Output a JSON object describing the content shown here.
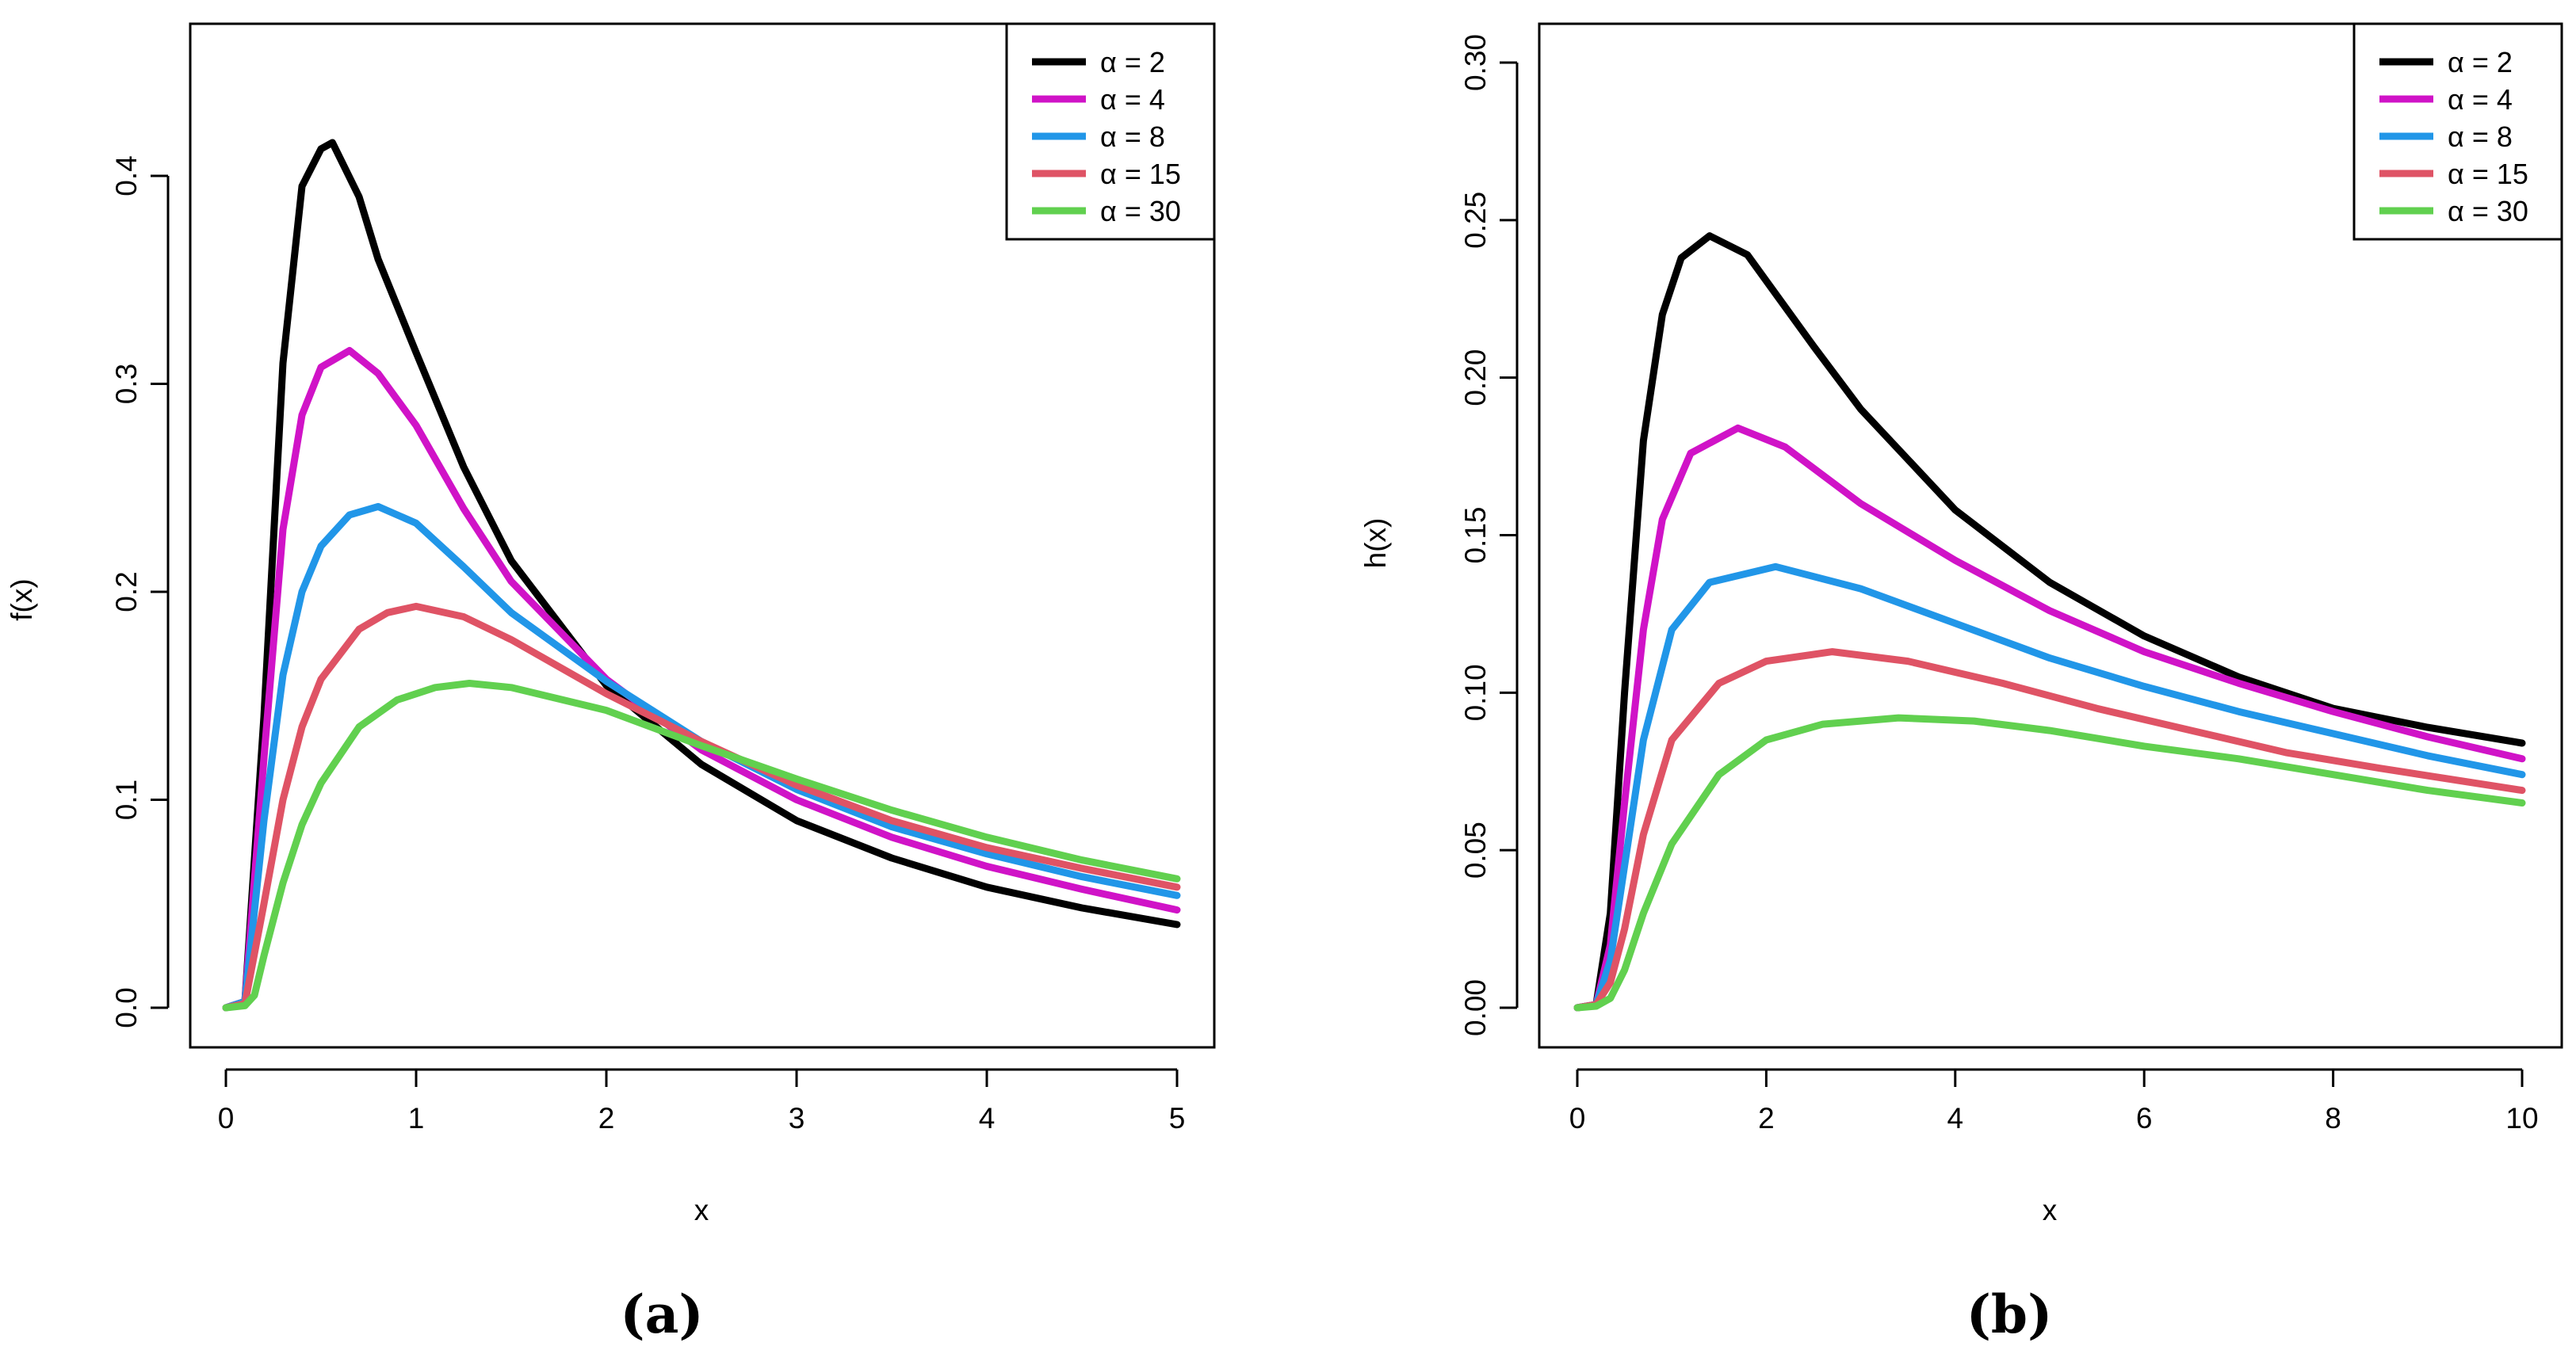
{
  "chart_data": [
    {
      "type": "line",
      "panel": "a",
      "caption": "(a)",
      "xlabel": "x",
      "ylabel": "f(x)",
      "xlim": [
        0,
        5
      ],
      "ylim": [
        0,
        0.42
      ],
      "x_ticks": [
        0,
        1,
        2,
        3,
        4,
        5
      ],
      "x_tick_labels": [
        "0",
        "1",
        "2",
        "3",
        "4",
        "5"
      ],
      "y_ticks": [
        0,
        0.1,
        0.2,
        0.3,
        0.4
      ],
      "y_tick_labels": [
        "0.0",
        "0.1",
        "0.2",
        "0.3",
        "0.4"
      ],
      "legend_position": "top-right",
      "series": [
        {
          "name": "α = 2",
          "color": "#000000",
          "x": [
            0,
            0.1,
            0.2,
            0.3,
            0.4,
            0.5,
            0.56,
            0.7,
            0.8,
            1.0,
            1.25,
            1.5,
            2.0,
            2.5,
            3.0,
            3.5,
            4.0,
            4.5,
            5.0
          ],
          "y": [
            0,
            0.003,
            0.14,
            0.31,
            0.395,
            0.413,
            0.416,
            0.39,
            0.36,
            0.315,
            0.26,
            0.215,
            0.155,
            0.117,
            0.09,
            0.072,
            0.058,
            0.048,
            0.04
          ]
        },
        {
          "name": "α = 4",
          "color": "#d013c7",
          "x": [
            0,
            0.1,
            0.2,
            0.3,
            0.4,
            0.5,
            0.65,
            0.8,
            1.0,
            1.25,
            1.5,
            2.0,
            2.5,
            3.0,
            3.5,
            4.0,
            4.5,
            5.0
          ],
          "y": [
            0,
            0.003,
            0.12,
            0.23,
            0.285,
            0.308,
            0.316,
            0.305,
            0.28,
            0.24,
            0.205,
            0.158,
            0.124,
            0.1,
            0.082,
            0.068,
            0.057,
            0.047
          ]
        },
        {
          "name": "α = 8",
          "color": "#2196e8",
          "x": [
            0,
            0.1,
            0.2,
            0.3,
            0.4,
            0.5,
            0.65,
            0.8,
            1.0,
            1.25,
            1.5,
            2.0,
            2.5,
            3.0,
            3.5,
            4.0,
            4.5,
            5.0
          ],
          "y": [
            0,
            0.003,
            0.09,
            0.16,
            0.2,
            0.222,
            0.237,
            0.241,
            0.233,
            0.212,
            0.19,
            0.157,
            0.128,
            0.105,
            0.087,
            0.074,
            0.063,
            0.054
          ]
        },
        {
          "name": "α = 15",
          "color": "#df5365",
          "x": [
            0,
            0.1,
            0.2,
            0.3,
            0.4,
            0.5,
            0.7,
            0.85,
            1.0,
            1.25,
            1.5,
            2.0,
            2.5,
            3.0,
            3.5,
            4.0,
            4.5,
            5.0
          ],
          "y": [
            0,
            0.002,
            0.05,
            0.1,
            0.135,
            0.158,
            0.182,
            0.19,
            0.193,
            0.188,
            0.177,
            0.151,
            0.128,
            0.107,
            0.09,
            0.077,
            0.067,
            0.058
          ]
        },
        {
          "name": "α = 30",
          "color": "#61d04f",
          "x": [
            0,
            0.1,
            0.15,
            0.2,
            0.3,
            0.4,
            0.5,
            0.7,
            0.9,
            1.1,
            1.28,
            1.5,
            2.0,
            2.5,
            3.0,
            3.5,
            4.0,
            4.5,
            5.0
          ],
          "y": [
            0,
            0.001,
            0.006,
            0.025,
            0.06,
            0.088,
            0.108,
            0.135,
            0.148,
            0.154,
            0.156,
            0.154,
            0.143,
            0.126,
            0.11,
            0.095,
            0.082,
            0.071,
            0.062
          ]
        }
      ]
    },
    {
      "type": "line",
      "panel": "b",
      "caption": "(b)",
      "xlabel": "x",
      "ylabel": "h(x)",
      "xlim": [
        0,
        10
      ],
      "ylim": [
        0,
        0.3
      ],
      "x_ticks": [
        0,
        2,
        4,
        6,
        8,
        10
      ],
      "x_tick_labels": [
        "0",
        "2",
        "4",
        "6",
        "8",
        "10"
      ],
      "y_ticks": [
        0,
        0.05,
        0.1,
        0.15,
        0.2,
        0.25,
        0.3
      ],
      "y_tick_labels": [
        "0.00",
        "0.05",
        "0.10",
        "0.15",
        "0.20",
        "0.25",
        "0.30"
      ],
      "legend_position": "top-right",
      "series": [
        {
          "name": "α = 2",
          "color": "#000000",
          "x": [
            0,
            0.2,
            0.35,
            0.5,
            0.7,
            0.9,
            1.1,
            1.4,
            1.8,
            2.5,
            3.0,
            4.0,
            5.0,
            6.0,
            7.0,
            8.0,
            9.0,
            10.0
          ],
          "y": [
            0,
            0.001,
            0.03,
            0.1,
            0.18,
            0.22,
            0.238,
            0.245,
            0.239,
            0.21,
            0.19,
            0.158,
            0.135,
            0.118,
            0.105,
            0.095,
            0.089,
            0.084
          ]
        },
        {
          "name": "α = 4",
          "color": "#d013c7",
          "x": [
            0,
            0.2,
            0.35,
            0.5,
            0.7,
            0.9,
            1.2,
            1.7,
            2.2,
            3.0,
            4.0,
            5.0,
            6.0,
            7.0,
            8.0,
            9.0,
            10.0
          ],
          "y": [
            0,
            0.001,
            0.02,
            0.065,
            0.12,
            0.155,
            0.176,
            0.184,
            0.178,
            0.16,
            0.142,
            0.126,
            0.113,
            0.103,
            0.094,
            0.086,
            0.079
          ]
        },
        {
          "name": "α = 8",
          "color": "#2196e8",
          "x": [
            0,
            0.2,
            0.35,
            0.5,
            0.7,
            1.0,
            1.4,
            2.1,
            3.0,
            4.0,
            5.0,
            6.0,
            7.0,
            8.0,
            9.0,
            10.0
          ],
          "y": [
            0,
            0.001,
            0.015,
            0.045,
            0.085,
            0.12,
            0.135,
            0.14,
            0.133,
            0.122,
            0.111,
            0.102,
            0.094,
            0.087,
            0.08,
            0.074
          ]
        },
        {
          "name": "α = 15",
          "color": "#df5365",
          "x": [
            0,
            0.2,
            0.35,
            0.5,
            0.7,
            1.0,
            1.5,
            2.0,
            2.7,
            3.5,
            4.5,
            5.5,
            6.5,
            7.5,
            8.5,
            10.0
          ],
          "y": [
            0,
            0.001,
            0.008,
            0.025,
            0.055,
            0.085,
            0.103,
            0.11,
            0.113,
            0.11,
            0.103,
            0.095,
            0.088,
            0.081,
            0.076,
            0.069
          ]
        },
        {
          "name": "α = 30",
          "color": "#61d04f",
          "x": [
            0,
            0.2,
            0.35,
            0.5,
            0.7,
            1.0,
            1.5,
            2.0,
            2.6,
            3.4,
            4.2,
            5.0,
            6.0,
            7.0,
            8.0,
            9.0,
            10.0
          ],
          "y": [
            0,
            0.0005,
            0.003,
            0.012,
            0.03,
            0.052,
            0.074,
            0.085,
            0.09,
            0.092,
            0.091,
            0.088,
            0.083,
            0.079,
            0.074,
            0.069,
            0.065
          ]
        }
      ]
    }
  ]
}
